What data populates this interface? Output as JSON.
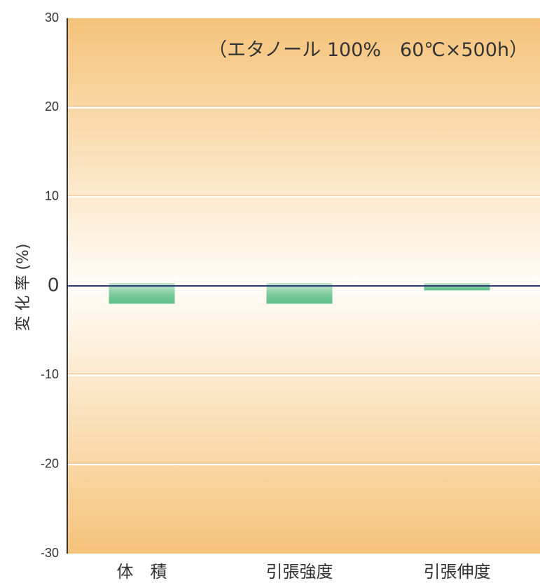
{
  "chart_data": {
    "type": "bar",
    "annotation": "（エタノール 100%　60℃×500h）",
    "ylabel": "変 化 率 (%)",
    "ylim": [
      -30,
      30
    ],
    "yticks": [
      -30,
      -20,
      -10,
      0,
      10,
      20,
      30
    ],
    "categories": [
      "体　積",
      "引張強度",
      "引張伸度"
    ],
    "values": [
      -2,
      -2,
      -0.5
    ],
    "grid": true,
    "colors": {
      "bar": "#5fbf8a",
      "zero_line": "#2a3a7a",
      "background_edge": "#f6c37a",
      "background_center": "#fffdf8",
      "axis": "#333333"
    }
  }
}
